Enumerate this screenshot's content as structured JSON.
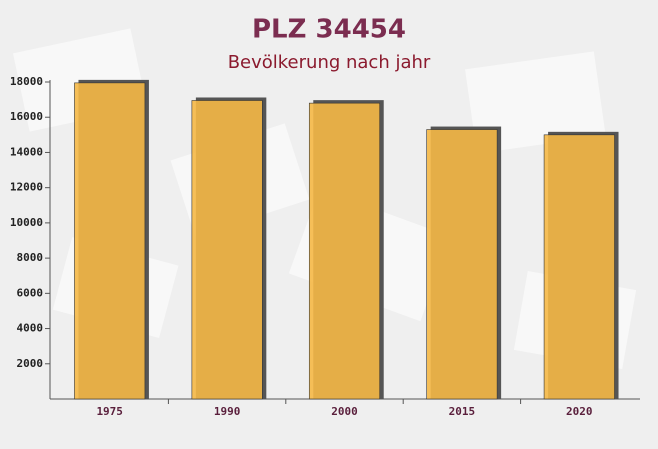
{
  "chart_data": {
    "type": "bar",
    "title": "PLZ 34454",
    "subtitle": "Bevölkerung nach jahr",
    "categories": [
      "1975",
      "1990",
      "2000",
      "2015",
      "2020"
    ],
    "values": [
      17950,
      16950,
      16800,
      15300,
      15000
    ],
    "color": "#f5b846",
    "ylim": [
      0,
      18000
    ],
    "yticks": [
      2000,
      4000,
      6000,
      8000,
      10000,
      12000,
      14000,
      16000,
      18000
    ],
    "grid": false
  }
}
